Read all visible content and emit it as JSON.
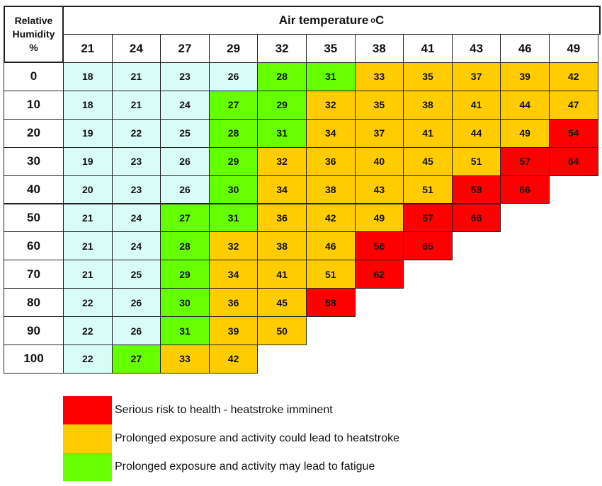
{
  "chart_data": {
    "type": "table",
    "corner_label": [
      "Relative",
      "Humidity",
      "%"
    ],
    "column_header": "Air temperature",
    "column_unit_degree": "o",
    "column_unit": "C",
    "temperatures": [
      21,
      24,
      27,
      29,
      32,
      35,
      38,
      41,
      43,
      46,
      49
    ],
    "humidity": [
      0,
      10,
      20,
      30,
      40,
      50,
      60,
      70,
      80,
      90,
      100
    ],
    "values": [
      [
        18,
        21,
        23,
        26,
        28,
        31,
        33,
        35,
        37,
        39,
        42
      ],
      [
        18,
        21,
        24,
        27,
        29,
        32,
        35,
        38,
        41,
        44,
        47
      ],
      [
        19,
        22,
        25,
        28,
        31,
        34,
        37,
        41,
        44,
        49,
        54
      ],
      [
        19,
        23,
        26,
        29,
        32,
        36,
        40,
        45,
        51,
        57,
        64
      ],
      [
        20,
        23,
        26,
        30,
        34,
        38,
        43,
        51,
        58,
        66
      ],
      [
        21,
        24,
        27,
        31,
        36,
        42,
        49,
        57,
        66
      ],
      [
        21,
        24,
        28,
        32,
        38,
        46,
        56,
        65
      ],
      [
        21,
        25,
        29,
        34,
        41,
        51,
        62
      ],
      [
        22,
        26,
        30,
        36,
        45,
        58
      ],
      [
        22,
        26,
        31,
        39,
        50
      ],
      [
        22,
        27,
        33,
        42
      ]
    ],
    "colors": {
      "none": "#d8fcf6",
      "fatigue": "#66ff00",
      "heatstroke_possible": "#ffcc00",
      "serious": "#ff0000"
    },
    "legend": [
      {
        "key": "serious",
        "label": "Serious risk to health - heatstroke imminent"
      },
      {
        "key": "heatstroke_possible",
        "label": "Prolonged exposure and activity could lead to heatstroke"
      },
      {
        "key": "fatigue",
        "label": "Prolonged exposure and activity may lead to fatigue"
      }
    ]
  }
}
